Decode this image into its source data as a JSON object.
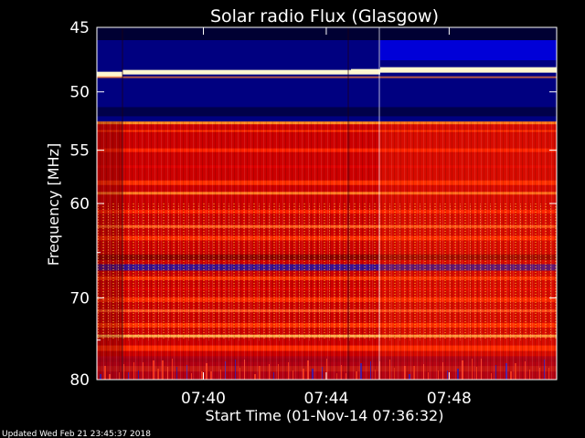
{
  "chart_data": {
    "type": "heatmap",
    "title": "Solar radio Flux (Glasgow)",
    "ylabel": "Frequency [MHz]",
    "xlabel": "Start Time (01-Nov-14 07:36:32)",
    "y_ticks": [
      "45",
      "50",
      "55",
      "60",
      "70",
      "80"
    ],
    "x_ticks": [
      "07:40",
      "07:44",
      "07:48"
    ],
    "yrange_mhz": [
      45,
      80
    ],
    "y_scale": "log",
    "time_range": [
      "07:36:32",
      "07:51:30"
    ],
    "colors": {
      "background": "#000000",
      "low": "#000080",
      "mid": "#cc0000",
      "high": "#ff2a00",
      "peak": "#fff7d0"
    },
    "bright_band_mhz": 48.6,
    "emission_onset_mhz": 52.5
  },
  "footer": {
    "updated": "Updated Wed Feb 21 23:45:37 2018"
  }
}
